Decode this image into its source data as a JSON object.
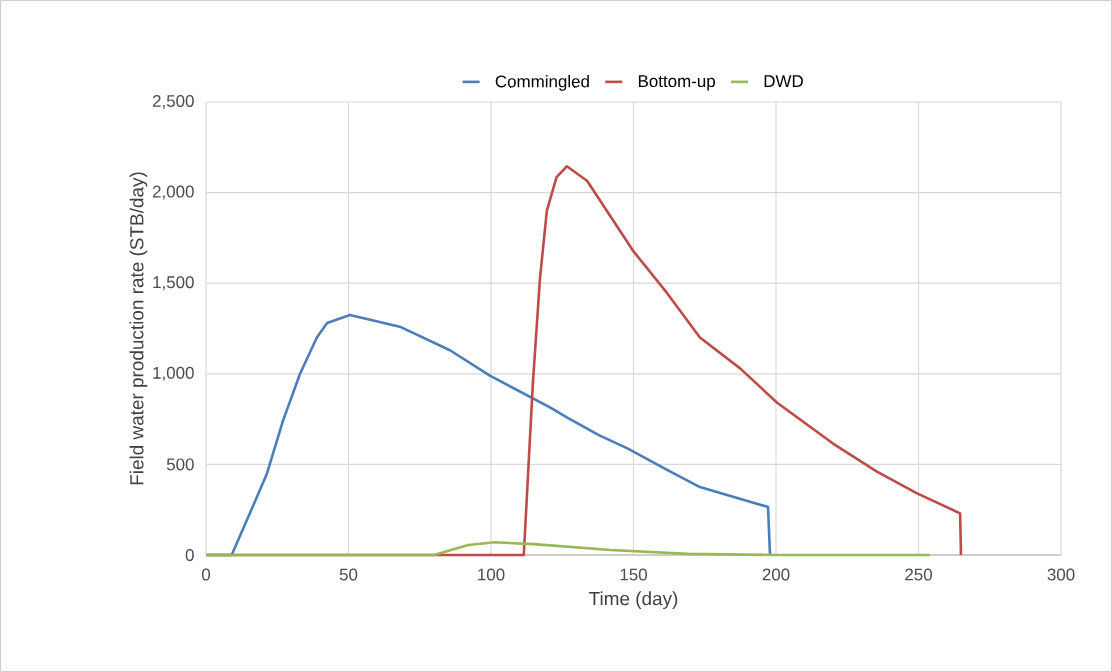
{
  "chart_data": {
    "type": "line",
    "xlabel": "Time (day)",
    "ylabel": "Field water production rate (STB/day)",
    "xlim": [
      0,
      300
    ],
    "xticks": [
      0,
      50,
      100,
      150,
      200,
      250,
      300
    ],
    "ylim": [
      0,
      2500
    ],
    "yticks": [
      0,
      500,
      {
        "value": 1000,
        "label": "1,000"
      },
      {
        "value": 1500,
        "label": "1,500"
      },
      {
        "value": 2000,
        "label": "2,000"
      },
      {
        "value": 2500,
        "label": "2,500"
      }
    ],
    "grid": true,
    "legend": "top",
    "marker": "none",
    "line_style": "solid",
    "series": [
      {
        "name": "Commingled",
        "color": "#4a7ebb",
        "x": [
          0,
          9,
          15.4,
          21.4,
          27,
          33,
          38.9,
          42.5,
          50.5,
          68,
          85.6,
          99.6,
          120.7,
          126.6,
          138,
          147.7,
          161.8,
          173.3,
          197.2,
          197.9
        ],
        "values": [
          0,
          0,
          230,
          450,
          740,
          1000,
          1200,
          1280,
          1325,
          1260,
          1130,
          990,
          815,
          760,
          660,
          590,
          470,
          375,
          265,
          0
        ]
      },
      {
        "name": "Bottom-up",
        "color": "#be4b48",
        "x": [
          0,
          111.5,
          114.7,
          117.2,
          119.6,
          123,
          126.6,
          133.7,
          149.8,
          161.8,
          173.3,
          187.4,
          200.4,
          220,
          235.4,
          249.5,
          264.6,
          264.9
        ],
        "values": [
          0,
          0,
          950,
          1530,
          1900,
          2085,
          2145,
          2065,
          1680,
          1445,
          1200,
          1030,
          840,
          615,
          460,
          340,
          230,
          0
        ]
      },
      {
        "name": "DWD",
        "color": "#98b954",
        "x": [
          0,
          80,
          92,
          101.4,
          115,
          142,
          169,
          200,
          254
        ],
        "values": [
          0,
          0,
          55,
          70,
          60,
          28,
          6,
          0,
          0
        ]
      }
    ]
  }
}
